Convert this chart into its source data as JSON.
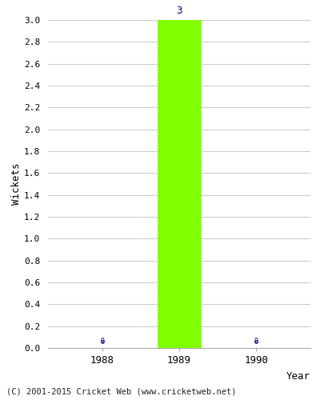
{
  "years": [
    1988,
    1989,
    1990
  ],
  "values": [
    0,
    3,
    0
  ],
  "bar_color": "#7fff00",
  "bar_edge_color": "#7fff00",
  "zero_dot_color": "#000080",
  "zero_label_color": "#000080",
  "label_color": "#000080",
  "xlabel": "Year",
  "ylabel": "Wickets",
  "ylim": [
    0.0,
    3.0
  ],
  "yticks": [
    0.0,
    0.2,
    0.4,
    0.6,
    0.8,
    1.0,
    1.2,
    1.4,
    1.6,
    1.8,
    2.0,
    2.2,
    2.4,
    2.6,
    2.8,
    3.0
  ],
  "background_color": "#ffffff",
  "grid_color": "#c8c8c8",
  "copyright": "(C) 2001-2015 Cricket Web (www.cricketweb.net)",
  "bar_width": 0.55,
  "xlim": [
    1987.3,
    1990.7
  ]
}
